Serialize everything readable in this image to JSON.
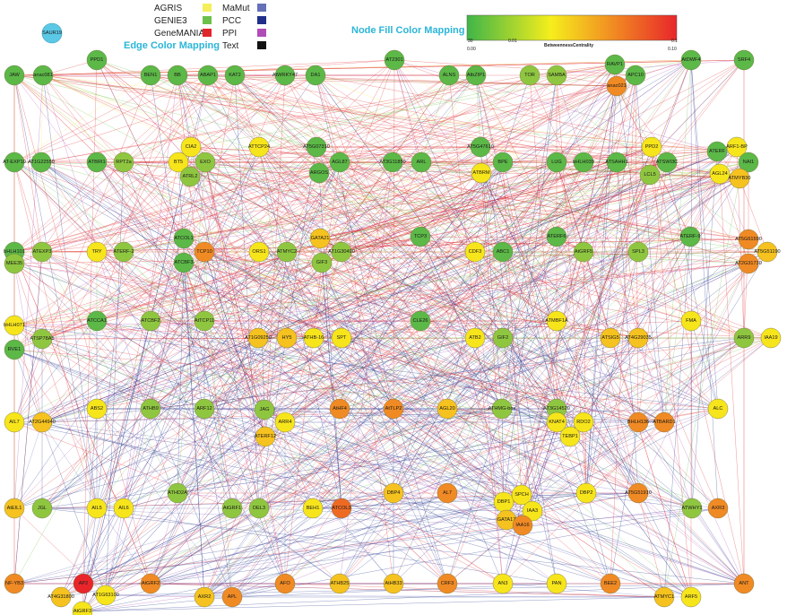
{
  "legend": {
    "edge_color_mapping": {
      "title": "Edge Color Mapping",
      "title_color": "#2bb5d8",
      "entries": [
        {
          "label": "AGRIS",
          "color": "#f4ef5a"
        },
        {
          "label": "GENIE3",
          "color": "#6cc04a"
        },
        {
          "label": "GeneMANIA",
          "color": "#e0262a"
        },
        {
          "label": "MaMut",
          "color": "#6670b8"
        },
        {
          "label": "PCC",
          "color": "#1f2f8a"
        },
        {
          "label": "PPI",
          "color": "#b04cb6"
        },
        {
          "label": "Text",
          "color": "#111111"
        }
      ]
    },
    "node_fill_mapping": {
      "title": "Node Fill Color Mapping",
      "title_color": "#2bb5d8",
      "gradient_label": "BetweennessCentrality",
      "tick_top_left": "30",
      "tick_mid": "0.01",
      "tick_top_right": "0.1",
      "tick_bottom_left": "0.00",
      "tick_bottom_right": "0.10",
      "colors": [
        "#3fb548",
        "#f5ee1c",
        "#f18a22",
        "#e8262a"
      ]
    }
  },
  "isolated_node": {
    "label": "SAUR19",
    "color": "#5bc8e6"
  },
  "nodes": [
    {
      "label": "JAW",
      "c": "#5cb847"
    },
    {
      "label": "anac081",
      "c": "#5cb847"
    },
    {
      "label": "PPD1",
      "c": "#5cb847"
    },
    {
      "label": "BEN1",
      "c": "#5cb847"
    },
    {
      "label": "BB",
      "c": "#5cb847"
    },
    {
      "label": "ABAP1",
      "c": "#5cb847"
    },
    {
      "label": "KAT2",
      "c": "#5cb847"
    },
    {
      "label": "AtWRKY47",
      "c": "#5cb847"
    },
    {
      "label": "DA1",
      "c": "#5cb847"
    },
    {
      "label": "AT2301",
      "c": "#5cb847"
    },
    {
      "label": "ALNS",
      "c": "#5cb847"
    },
    {
      "label": "AtbZIP1",
      "c": "#5cb847"
    },
    {
      "label": "TOR",
      "c": "#8fc640"
    },
    {
      "label": "SAMBA",
      "c": "#8fc640"
    },
    {
      "label": "RAVP1",
      "c": "#5cb847"
    },
    {
      "label": "APC10",
      "c": "#5cb847"
    },
    {
      "label": "AtDWF4",
      "c": "#5cb847"
    },
    {
      "label": "SRF4",
      "c": "#5cb847"
    },
    {
      "label": "anac021",
      "c": "#f08a24"
    },
    {
      "label": "AT-EXP10",
      "c": "#5cb847"
    },
    {
      "label": "AT1G22550",
      "c": "#5cb847"
    },
    {
      "label": "ATBRI1",
      "c": "#5cb847"
    },
    {
      "label": "RPT2a",
      "c": "#8fc640"
    },
    {
      "label": "CIA2",
      "c": "#f7e51c"
    },
    {
      "label": "BT5",
      "c": "#f7e51c"
    },
    {
      "label": "EXO",
      "c": "#8fc640"
    },
    {
      "label": "ATRL2",
      "c": "#8fc640"
    },
    {
      "label": "ATTCP24",
      "c": "#f7e51c"
    },
    {
      "label": "AT5G07310",
      "c": "#5cb847"
    },
    {
      "label": "AGL87",
      "c": "#5cb847"
    },
    {
      "label": "ARGOS",
      "c": "#5cb847"
    },
    {
      "label": "AT3G11850",
      "c": "#5cb847"
    },
    {
      "label": "ARL",
      "c": "#5cb847"
    },
    {
      "label": "AT5G47610",
      "c": "#5cb847"
    },
    {
      "label": "ATBRM",
      "c": "#f7e51c"
    },
    {
      "label": "BPE",
      "c": "#5cb847"
    },
    {
      "label": "LUG",
      "c": "#5cb847"
    },
    {
      "label": "bHLH039",
      "c": "#5cb847"
    },
    {
      "label": "ATSAHH1",
      "c": "#5cb847"
    },
    {
      "label": "LCL5",
      "c": "#8fc640"
    },
    {
      "label": "ATSWI3C",
      "c": "#5cb847"
    },
    {
      "label": "PPD2",
      "c": "#f7e51c"
    },
    {
      "label": "ATERF",
      "c": "#5cb847"
    },
    {
      "label": "ARF1-BP",
      "c": "#f7e51c"
    },
    {
      "label": "NAI1",
      "c": "#5cb847"
    },
    {
      "label": "AGL24",
      "c": "#f7e51c"
    },
    {
      "label": "ATMYB30",
      "c": "#f5c21f"
    },
    {
      "label": "bHLH101",
      "c": "#5cb847"
    },
    {
      "label": "ATEXP3",
      "c": "#8fc640"
    },
    {
      "label": "TRY",
      "c": "#f7e51c"
    },
    {
      "label": "ATERF-2",
      "c": "#8fc640"
    },
    {
      "label": "ATCOL1",
      "c": "#5cb847"
    },
    {
      "label": "TCP10",
      "c": "#f08a24"
    },
    {
      "label": "ATCBF3",
      "c": "#5cb847"
    },
    {
      "label": "ORS1",
      "c": "#f7e51c"
    },
    {
      "label": "ATMYC2",
      "c": "#8fc640"
    },
    {
      "label": "GATA21",
      "c": "#f5c21f"
    },
    {
      "label": "AT1G30490",
      "c": "#8fc640"
    },
    {
      "label": "GIF3",
      "c": "#8fc640"
    },
    {
      "label": "TCP3",
      "c": "#5cb847"
    },
    {
      "label": "CDF3",
      "c": "#f7e51c"
    },
    {
      "label": "ABC1",
      "c": "#5cb847"
    },
    {
      "label": "ATERF6",
      "c": "#5cb847"
    },
    {
      "label": "AtGRF5",
      "c": "#8fc640"
    },
    {
      "label": "SPL3",
      "c": "#8fc640"
    },
    {
      "label": "ATERF-9",
      "c": "#5cb847"
    },
    {
      "label": "AT5G61590",
      "c": "#f08a24"
    },
    {
      "label": "AT5G51190",
      "c": "#f5c21f"
    },
    {
      "label": "AT2G31730",
      "c": "#f08a24"
    },
    {
      "label": "MEE35",
      "c": "#8fc640"
    },
    {
      "label": "ATCCA1",
      "c": "#5cb847"
    },
    {
      "label": "ATCBF2",
      "c": "#8fc640"
    },
    {
      "label": "AtTCP11",
      "c": "#8fc640"
    },
    {
      "label": "bHLH071",
      "c": "#f7e51c"
    },
    {
      "label": "ATSP78A5",
      "c": "#8fc640"
    },
    {
      "label": "RVE1",
      "c": "#5cb847"
    },
    {
      "label": "AT1G09250",
      "c": "#f5c21f"
    },
    {
      "label": "HY5",
      "c": "#f5c21f"
    },
    {
      "label": "ATHB-16",
      "c": "#f7e51c"
    },
    {
      "label": "SPT",
      "c": "#f7e51c"
    },
    {
      "label": "CLE26",
      "c": "#5cb847"
    },
    {
      "label": "ATB2",
      "c": "#f7e51c"
    },
    {
      "label": "GIF2",
      "c": "#8fc640"
    },
    {
      "label": "ATMBF1A",
      "c": "#f7e51c"
    },
    {
      "label": "ATSIG5",
      "c": "#f5c21f"
    },
    {
      "label": "AT4G29035",
      "c": "#f5c21f"
    },
    {
      "label": "FMA",
      "c": "#f7e51c"
    },
    {
      "label": "ARR9",
      "c": "#8fc640"
    },
    {
      "label": "IAA19",
      "c": "#f7e51c"
    },
    {
      "label": "AIL7",
      "c": "#f7e51c"
    },
    {
      "label": "AT2G44940",
      "c": "#f5c21f"
    },
    {
      "label": "ABS2",
      "c": "#f7e51c"
    },
    {
      "label": "ATHB9",
      "c": "#8fc640"
    },
    {
      "label": "ARF12",
      "c": "#8fc640"
    },
    {
      "label": "JAG",
      "c": "#8fc640"
    },
    {
      "label": "ARR4",
      "c": "#f7e51c"
    },
    {
      "label": "ATERF12",
      "c": "#f5c21f"
    },
    {
      "label": "AtHF4",
      "c": "#f08a24"
    },
    {
      "label": "AtTLP2",
      "c": "#f08a24"
    },
    {
      "label": "AGL20",
      "c": "#f5c21f"
    },
    {
      "label": "ATHMG-box",
      "c": "#8fc640"
    },
    {
      "label": "AT3G14520",
      "c": "#8fc640"
    },
    {
      "label": "KNAT4",
      "c": "#f7e51c"
    },
    {
      "label": "RDO2",
      "c": "#f7e51c"
    },
    {
      "label": "TEBP1",
      "c": "#f7e51c"
    },
    {
      "label": "BHLH136",
      "c": "#f08a24"
    },
    {
      "label": "ATBARD1",
      "c": "#f08a24"
    },
    {
      "label": "ALC",
      "c": "#f7e51c"
    },
    {
      "label": "AtEIL1",
      "c": "#f5c21f"
    },
    {
      "label": "JGL",
      "c": "#8fc640"
    },
    {
      "label": "AIL5",
      "c": "#f7e51c"
    },
    {
      "label": "AIL6",
      "c": "#f7e51c"
    },
    {
      "label": "ATHD2A",
      "c": "#8fc640"
    },
    {
      "label": "AtGRF1",
      "c": "#8fc640"
    },
    {
      "label": "DEL3",
      "c": "#8fc640"
    },
    {
      "label": "BEH1",
      "c": "#f7e51c"
    },
    {
      "label": "ATCOL3",
      "c": "#ee6a23"
    },
    {
      "label": "DBP4",
      "c": "#f5c21f"
    },
    {
      "label": "AL7",
      "c": "#f08a24"
    },
    {
      "label": "DBP1",
      "c": "#f7e51c"
    },
    {
      "label": "SPCH",
      "c": "#f7e51c"
    },
    {
      "label": "IAA3",
      "c": "#f7e51c"
    },
    {
      "label": "GATA17",
      "c": "#f5c21f"
    },
    {
      "label": "IAA16",
      "c": "#f08a24"
    },
    {
      "label": "DBP2",
      "c": "#f7e51c"
    },
    {
      "label": "AT5G51910",
      "c": "#f08a24"
    },
    {
      "label": "ATWHY1",
      "c": "#8fc640"
    },
    {
      "label": "AXR3",
      "c": "#f08a24"
    },
    {
      "label": "NF-YB3",
      "c": "#f08a24"
    },
    {
      "label": "AP2",
      "c": "#e8262a"
    },
    {
      "label": "AT4G31800",
      "c": "#f5c21f"
    },
    {
      "label": "AT1G63100",
      "c": "#f7e51c"
    },
    {
      "label": "AtGRF3",
      "c": "#f7e51c"
    },
    {
      "label": "AtGRF2",
      "c": "#f08a24"
    },
    {
      "label": "AXR2",
      "c": "#f5c21f"
    },
    {
      "label": "APL",
      "c": "#f08a24"
    },
    {
      "label": "AFO",
      "c": "#f08a24"
    },
    {
      "label": "ATHB25",
      "c": "#f5c21f"
    },
    {
      "label": "AtHB33",
      "c": "#f5c21f"
    },
    {
      "label": "CRF3",
      "c": "#f08a24"
    },
    {
      "label": "AN3",
      "c": "#f7e51c"
    },
    {
      "label": "PAN",
      "c": "#f7e51c"
    },
    {
      "label": "BEE2",
      "c": "#f08a24"
    },
    {
      "label": "ATMYC1",
      "c": "#f5c21f"
    },
    {
      "label": "ARF5",
      "c": "#f7e51c"
    },
    {
      "label": "ANT",
      "c": "#f08a24"
    }
  ]
}
